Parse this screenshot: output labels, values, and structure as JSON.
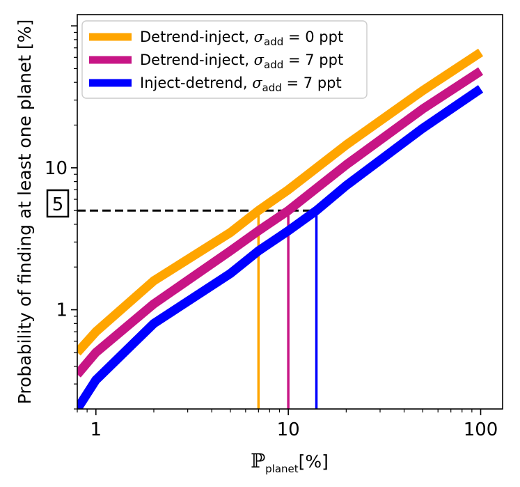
{
  "chart_data": {
    "type": "line",
    "x_scale": "log",
    "y_scale": "log",
    "xlabel": "ℙ",
    "xlabel_sub": "planet",
    "xlabel_unit": "[%]",
    "ylabel": "Probability of finding at least one planet [%]",
    "xlim": [
      0.8,
      130
    ],
    "ylim": [
      0.2,
      120
    ],
    "x_ticks": [
      1,
      10,
      100
    ],
    "x_tick_labels": [
      "1",
      "10",
      "100"
    ],
    "y_ticks": [
      1,
      10
    ],
    "y_tick_labels": [
      "1",
      "10"
    ],
    "threshold": {
      "y": 5,
      "label": "5"
    },
    "series": [
      {
        "name": "Detrend-inject",
        "sigma_value": "0",
        "unit": "ppt",
        "color": "#FFA500",
        "x": [
          0.8,
          1,
          2,
          5,
          7,
          10,
          20,
          50,
          100
        ],
        "values": [
          0.5,
          0.7,
          1.6,
          3.5,
          5.0,
          7.0,
          14.5,
          35.0,
          65.0
        ],
        "threshold_x": 7
      },
      {
        "name": "Detrend-inject",
        "sigma_value": "7",
        "unit": "ppt",
        "color": "#C71585",
        "x": [
          0.8,
          1,
          2,
          5,
          7,
          10,
          20,
          50,
          100
        ],
        "values": [
          0.35,
          0.5,
          1.1,
          2.6,
          3.6,
          5.0,
          10.5,
          26.0,
          48.0
        ],
        "threshold_x": 10
      },
      {
        "name": "Inject-detrend",
        "sigma_value": "7",
        "unit": "ppt",
        "color": "#0000FF",
        "x": [
          0.8,
          1,
          2,
          5,
          7,
          10,
          14,
          20,
          50,
          100
        ],
        "values": [
          0.2,
          0.32,
          0.8,
          1.8,
          2.6,
          3.6,
          5.0,
          7.5,
          19.0,
          36.0
        ],
        "threshold_x": 14
      }
    ]
  }
}
